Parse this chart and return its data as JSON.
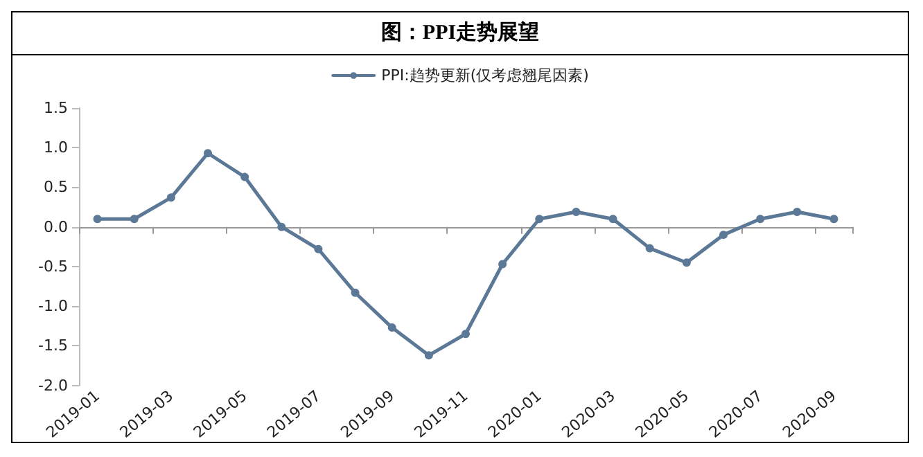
{
  "chart_data": {
    "type": "line",
    "title": "图：PPI走势展望",
    "categories": [
      "2019-01",
      null,
      "2019-03",
      null,
      "2019-05",
      null,
      "2019-07",
      null,
      "2019-09",
      null,
      "2019-11",
      null,
      "2020-01",
      null,
      "2020-03",
      null,
      "2020-05",
      null,
      "2020-07",
      null,
      "2020-09"
    ],
    "series": [
      {
        "name": "PPI:趋势更新(仅考虑翘尾因素)",
        "color": "#5b7896",
        "values": [
          0.1,
          0.1,
          0.37,
          0.93,
          0.63,
          0.0,
          -0.28,
          -0.83,
          -1.27,
          -1.62,
          -1.35,
          -0.47,
          0.1,
          0.19,
          0.1,
          -0.27,
          -0.45,
          -0.1,
          0.1,
          0.19,
          0.1
        ]
      }
    ],
    "ylim": [
      -2.0,
      1.5
    ],
    "yticks": [
      {
        "value": -2,
        "label": "-2.0"
      },
      -1.5,
      {
        "value": -1,
        "label": "-1.0"
      },
      -0.5,
      {
        "value": 0,
        "label": "0.0"
      },
      0.5,
      {
        "value": 1,
        "label": "1.0"
      },
      1.5
    ],
    "legend": "top",
    "marker": "circle",
    "line_style": "solid"
  }
}
